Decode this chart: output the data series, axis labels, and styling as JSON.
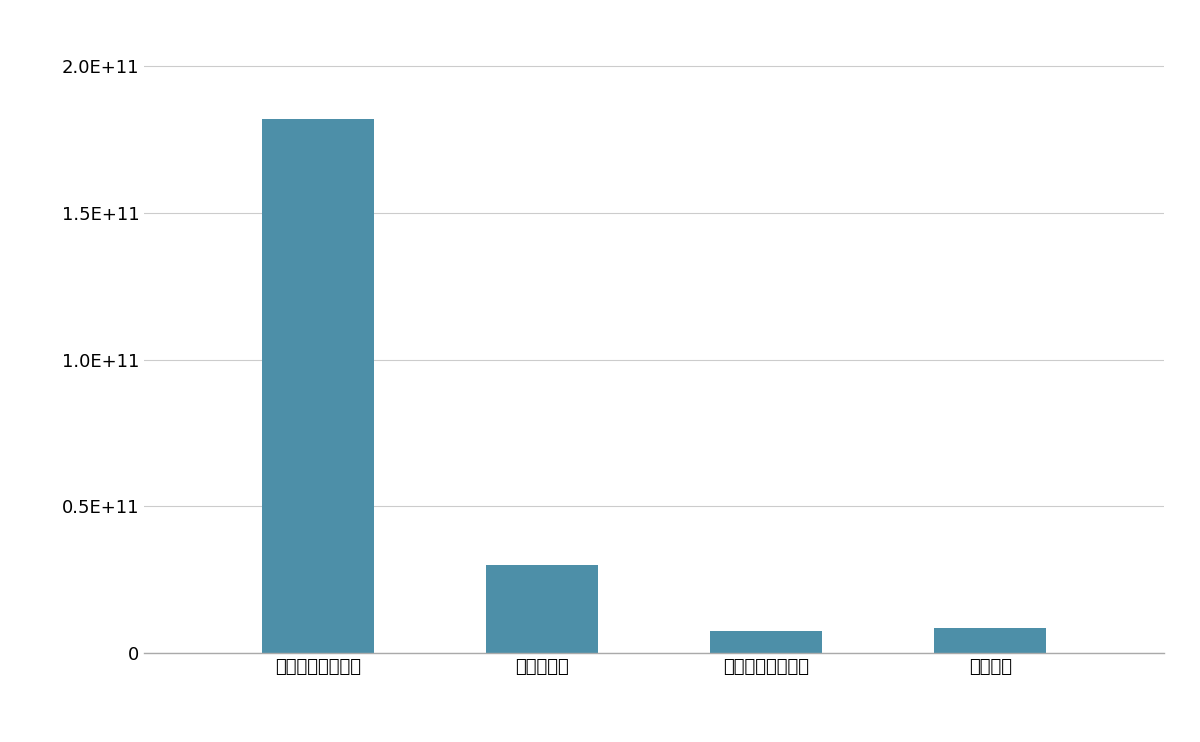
{
  "categories": [
    "イオンディライト",
    "東洋テック",
    "共立メンテナンス",
    "ホクタテ"
  ],
  "values": [
    182000000000.0,
    30000000000.0,
    7500000000.0,
    8500000000.0
  ],
  "bar_color": "#4d8fa8",
  "ylim": [
    0,
    210000000000.0
  ],
  "yticks": [
    0,
    50000000000.0,
    100000000000.0,
    150000000000.0,
    200000000000.0
  ],
  "background_color": "#ffffff",
  "grid_color": "#cccccc",
  "tick_label_fontsize": 13,
  "bar_width": 0.5
}
